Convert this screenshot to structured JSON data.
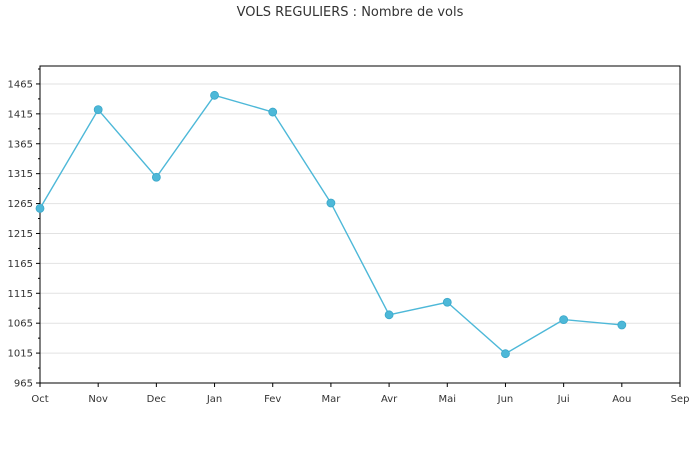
{
  "chart_data": {
    "type": "line",
    "title": "VOLS REGULIERS : Nombre de vols",
    "xlabel": "",
    "ylabel": "",
    "categories": [
      "Oct",
      "Nov",
      "Dec",
      "Jan",
      "Fev",
      "Mar",
      "Avr",
      "Mai",
      "Jun",
      "Jui",
      "Aou",
      "Sep"
    ],
    "y_ticks": [
      965,
      1015,
      1065,
      1115,
      1165,
      1215,
      1265,
      1315,
      1365,
      1415,
      1465
    ],
    "ylim": [
      965,
      1495
    ],
    "grid": true,
    "legend": "none",
    "series": [
      {
        "color": "#4db8d8",
        "values": [
          1257,
          1422,
          1309,
          1446,
          1418,
          1266,
          1079,
          1100,
          1014,
          1071,
          1062,
          null
        ]
      }
    ]
  }
}
